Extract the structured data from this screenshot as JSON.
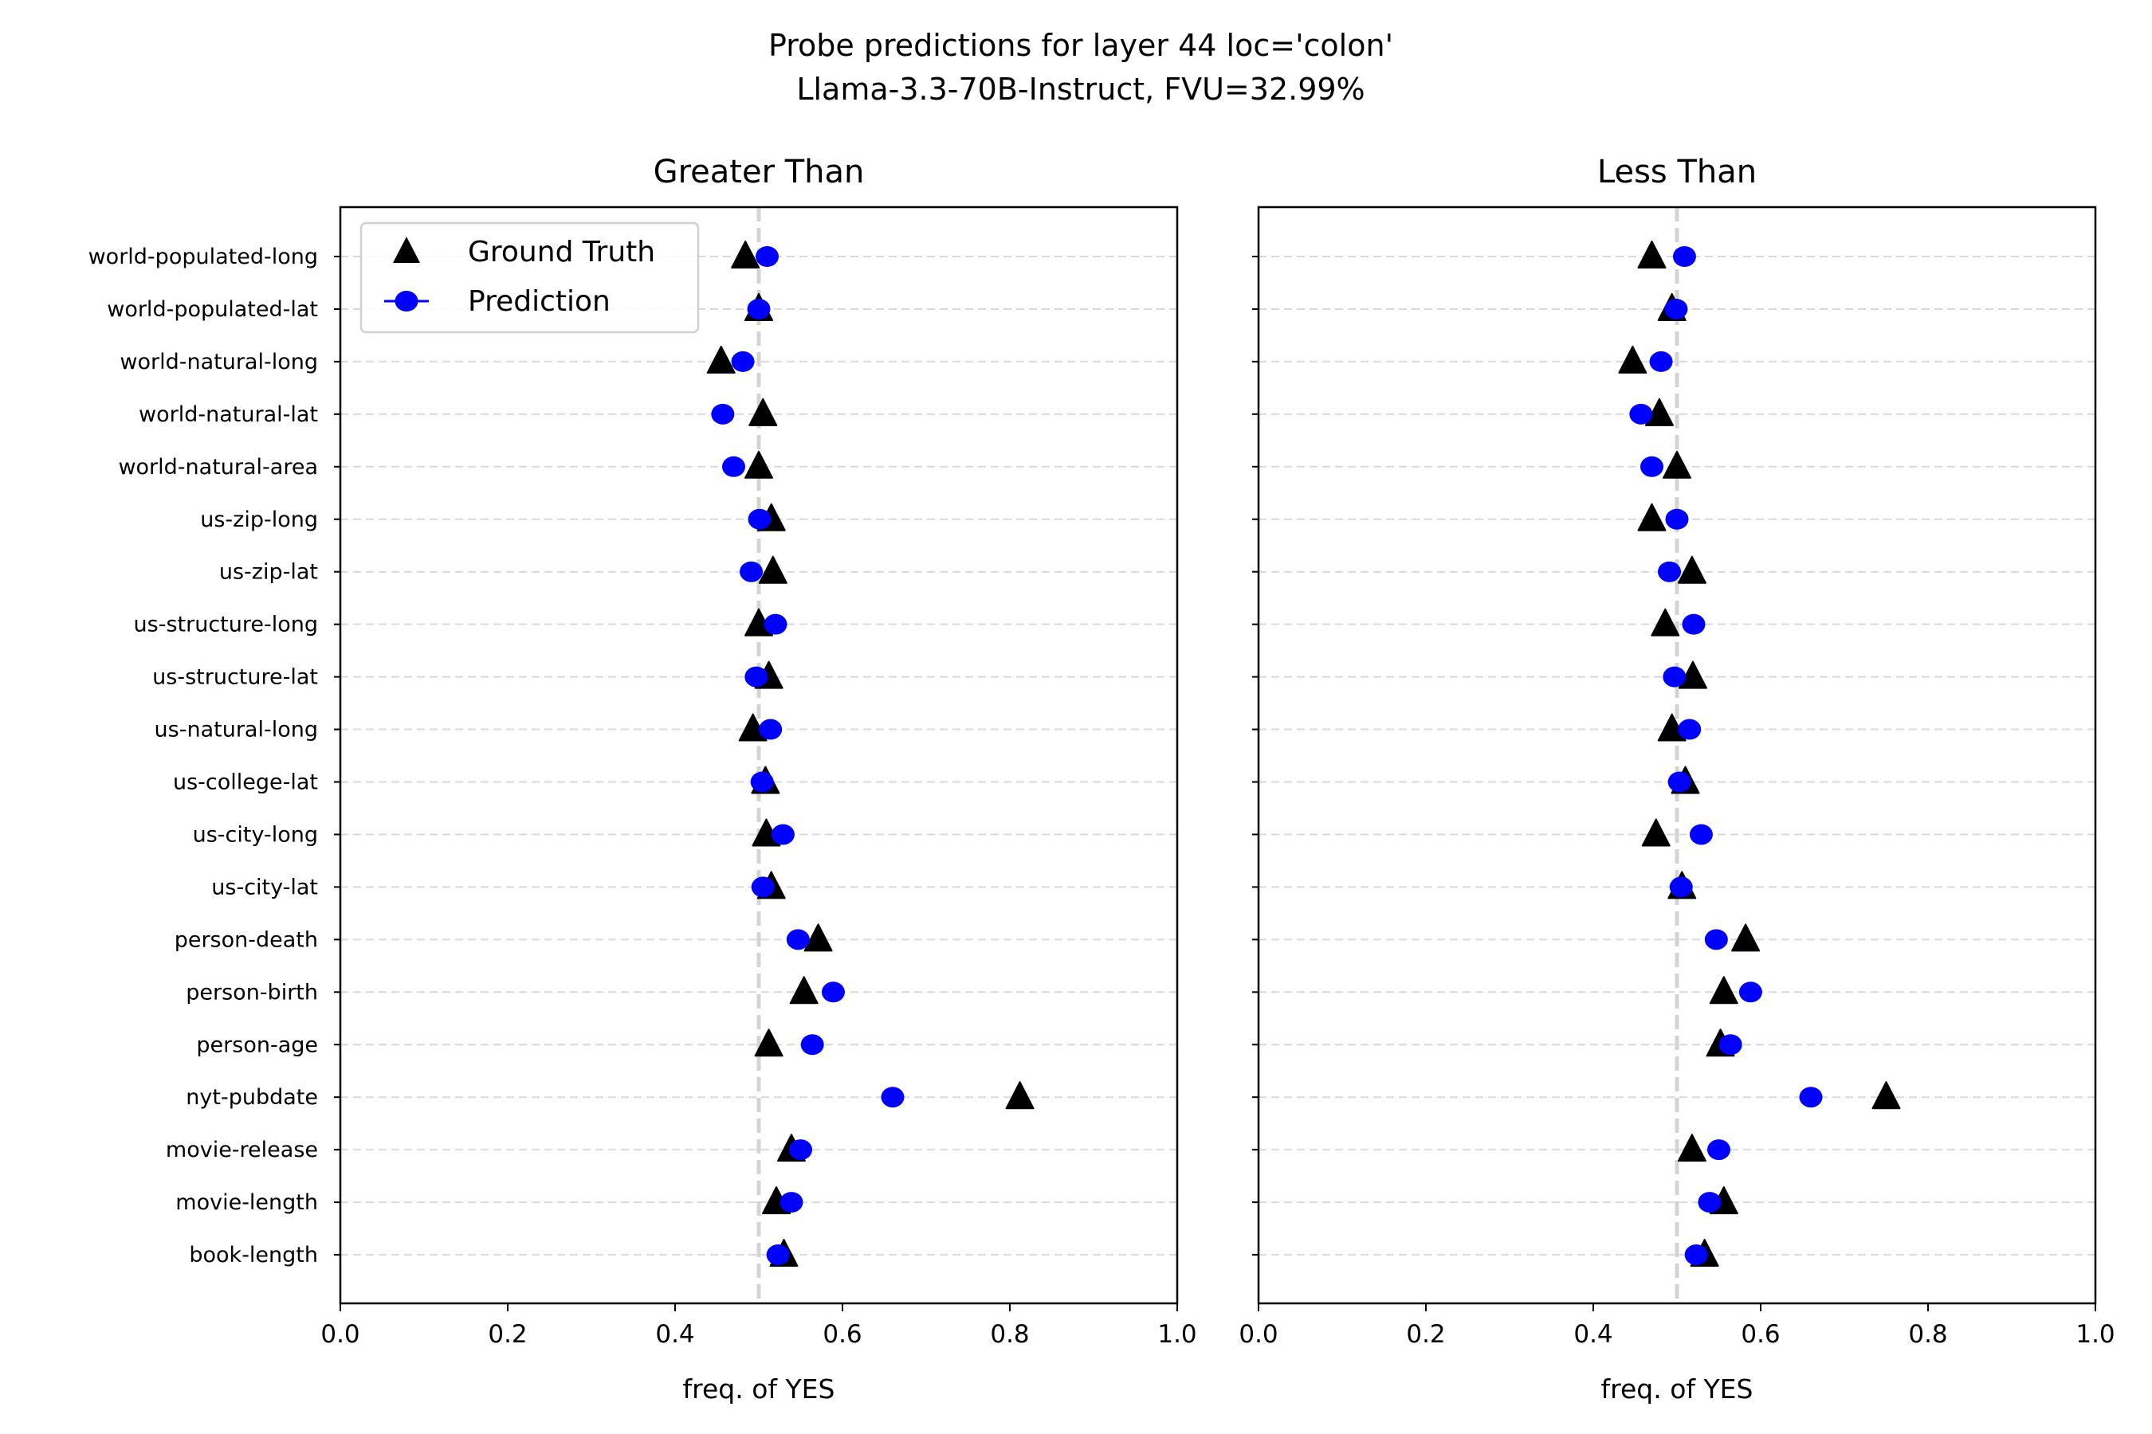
{
  "title_line1": "Probe predictions for layer 44 loc='colon'",
  "title_line2": "Llama-3.3-70B-Instruct, FVU=32.99%",
  "colors": {
    "ground_truth": "#000000",
    "prediction": "#0000ff",
    "grid": "#d9d9d9",
    "reference_line": "#d3d3d3"
  },
  "legend": {
    "ground_truth": "Ground Truth",
    "prediction": "Prediction",
    "placement": "upper-left"
  },
  "chart_data": [
    {
      "type": "scatter",
      "title": "Greater Than",
      "xlabel": "freq. of YES",
      "xlim": [
        0.0,
        1.0
      ],
      "xticks": [
        "0.0",
        "0.2",
        "0.4",
        "0.6",
        "0.8",
        "1.0"
      ],
      "reference_x": 0.5,
      "categories": [
        "world-populated-long",
        "world-populated-lat",
        "world-natural-long",
        "world-natural-lat",
        "world-natural-area",
        "us-zip-long",
        "us-zip-lat",
        "us-structure-long",
        "us-structure-lat",
        "us-natural-long",
        "us-college-lat",
        "us-city-long",
        "us-city-lat",
        "person-death",
        "person-birth",
        "person-age",
        "nyt-pubdate",
        "movie-release",
        "movie-length",
        "book-length"
      ],
      "series": [
        {
          "name": "Ground Truth",
          "marker": "triangle",
          "values": [
            0.484,
            0.5,
            0.455,
            0.505,
            0.5,
            0.515,
            0.517,
            0.5,
            0.512,
            0.493,
            0.508,
            0.509,
            0.515,
            0.571,
            0.554,
            0.512,
            0.812,
            0.539,
            0.521,
            0.53
          ]
        },
        {
          "name": "Prediction",
          "marker": "circle",
          "values": [
            0.51,
            0.5,
            0.481,
            0.457,
            0.47,
            0.501,
            0.491,
            0.52,
            0.497,
            0.514,
            0.504,
            0.529,
            0.505,
            0.547,
            0.589,
            0.564,
            0.66,
            0.55,
            0.539,
            0.523
          ]
        }
      ]
    },
    {
      "type": "scatter",
      "title": "Less Than",
      "xlabel": "freq. of YES",
      "xlim": [
        0.0,
        1.0
      ],
      "xticks": [
        "0.0",
        "0.2",
        "0.4",
        "0.6",
        "0.8",
        "1.0"
      ],
      "reference_x": 0.5,
      "categories": [
        "world-populated-long",
        "world-populated-lat",
        "world-natural-long",
        "world-natural-lat",
        "world-natural-area",
        "us-zip-long",
        "us-zip-lat",
        "us-structure-long",
        "us-structure-lat",
        "us-natural-long",
        "us-college-lat",
        "us-city-long",
        "us-city-lat",
        "person-death",
        "person-birth",
        "person-age",
        "nyt-pubdate",
        "movie-release",
        "movie-length",
        "book-length"
      ],
      "series": [
        {
          "name": "Ground Truth",
          "marker": "triangle",
          "values": [
            0.47,
            0.494,
            0.447,
            0.479,
            0.5,
            0.47,
            0.518,
            0.486,
            0.519,
            0.494,
            0.51,
            0.475,
            0.506,
            0.582,
            0.556,
            0.552,
            0.75,
            0.518,
            0.556,
            0.533
          ]
        },
        {
          "name": "Prediction",
          "marker": "circle",
          "values": [
            0.509,
            0.499,
            0.481,
            0.457,
            0.47,
            0.5,
            0.491,
            0.52,
            0.497,
            0.515,
            0.503,
            0.529,
            0.505,
            0.547,
            0.588,
            0.564,
            0.66,
            0.55,
            0.539,
            0.523
          ]
        }
      ]
    }
  ]
}
